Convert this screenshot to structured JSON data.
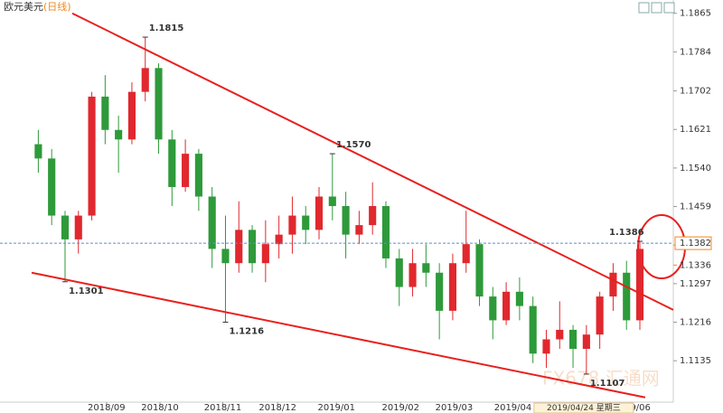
{
  "chart_data": {
    "type": "candlestick",
    "title": "欧元美元",
    "subtitle": "(日线)",
    "up_color": "#e0282e",
    "down_color": "#2e9a3a",
    "xlim": [
      0,
      48
    ],
    "xticks": [
      {
        "value": 5.6,
        "label": "2018/09"
      },
      {
        "value": 9.6,
        "label": "2018/10"
      },
      {
        "value": 14.3,
        "label": "2018/11"
      },
      {
        "value": 18.4,
        "label": "2018/12"
      },
      {
        "value": 22.8,
        "label": "2019/01"
      },
      {
        "value": 27.6,
        "label": "2019/02"
      },
      {
        "value": 31.6,
        "label": "2019/03"
      },
      {
        "value": 36,
        "label": "2019/04"
      },
      {
        "value": 44.9,
        "label": "2019/06"
      }
    ],
    "cursor_label": {
      "value": 41.3,
      "label": "2019/04/24  星期三"
    },
    "ylim": [
      1.1048,
      1.1893
    ],
    "yticks": [
      1.1135,
      1.1216,
      1.1297,
      1.1378,
      {
        "value": 1.1459,
        "label": "1.1459"
      },
      {
        "value": 1.154,
        "label": "1.1540"
      },
      1.1621,
      1.1702,
      1.1784,
      1.1865
    ],
    "ohlc": [
      [
        1.159,
        1.162,
        1.153,
        1.156
      ],
      [
        1.156,
        1.158,
        1.142,
        1.144
      ],
      [
        1.144,
        1.145,
        1.1301,
        1.139
      ],
      [
        1.139,
        1.145,
        1.136,
        1.144
      ],
      [
        1.144,
        1.17,
        1.143,
        1.169
      ],
      [
        1.169,
        1.1735,
        1.159,
        1.162
      ],
      [
        1.162,
        1.165,
        1.153,
        1.16
      ],
      [
        1.16,
        1.172,
        1.159,
        1.17
      ],
      [
        1.17,
        1.1815,
        1.168,
        1.175
      ],
      [
        1.175,
        1.176,
        1.157,
        1.16
      ],
      [
        1.16,
        1.162,
        1.146,
        1.15
      ],
      [
        1.15,
        1.16,
        1.149,
        1.157
      ],
      [
        1.157,
        1.158,
        1.145,
        1.148
      ],
      [
        1.148,
        1.15,
        1.133,
        1.137
      ],
      [
        1.137,
        1.144,
        1.1216,
        1.134
      ],
      [
        1.134,
        1.147,
        1.132,
        1.141
      ],
      [
        1.141,
        1.142,
        1.132,
        1.134
      ],
      [
        1.134,
        1.143,
        1.13,
        1.138
      ],
      [
        1.138,
        1.144,
        1.135,
        1.14
      ],
      [
        1.14,
        1.148,
        1.136,
        1.144
      ],
      [
        1.144,
        1.146,
        1.138,
        1.141
      ],
      [
        1.141,
        1.15,
        1.139,
        1.148
      ],
      [
        1.148,
        1.157,
        1.143,
        1.146
      ],
      [
        1.146,
        1.149,
        1.135,
        1.14
      ],
      [
        1.14,
        1.145,
        1.138,
        1.142
      ],
      [
        1.142,
        1.151,
        1.14,
        1.146
      ],
      [
        1.146,
        1.147,
        1.133,
        1.135
      ],
      [
        1.135,
        1.137,
        1.125,
        1.129
      ],
      [
        1.129,
        1.137,
        1.127,
        1.134
      ],
      [
        1.134,
        1.138,
        1.129,
        1.132
      ],
      [
        1.132,
        1.134,
        1.118,
        1.124
      ],
      [
        1.124,
        1.136,
        1.122,
        1.134
      ],
      [
        1.134,
        1.145,
        1.132,
        1.138
      ],
      [
        1.138,
        1.139,
        1.125,
        1.127
      ],
      [
        1.127,
        1.129,
        1.118,
        1.122
      ],
      [
        1.122,
        1.13,
        1.121,
        1.128
      ],
      [
        1.128,
        1.131,
        1.122,
        1.125
      ],
      [
        1.125,
        1.127,
        1.113,
        1.115
      ],
      [
        1.115,
        1.12,
        1.112,
        1.118
      ],
      [
        1.118,
        1.126,
        1.116,
        1.12
      ],
      [
        1.12,
        1.121,
        1.112,
        1.116
      ],
      [
        1.116,
        1.121,
        1.1107,
        1.119
      ],
      [
        1.119,
        1.128,
        1.116,
        1.127
      ],
      [
        1.127,
        1.134,
        1.124,
        1.132
      ],
      [
        1.132,
        1.1345,
        1.12,
        1.122
      ],
      [
        1.122,
        1.1386,
        1.12,
        1.137
      ]
    ],
    "trend_lines": [
      {
        "color": "#e8201e",
        "x": [
          3.04,
          48
        ],
        "y": [
          1.1865,
          1.1242
        ]
      },
      {
        "color": "#e8201e",
        "x": [
          0,
          45.9
        ],
        "y": [
          1.132,
          1.1058
        ]
      }
    ],
    "annotations": [
      {
        "x": 8.5,
        "value": 1.1815,
        "label": "1.1815",
        "color": "#d63a3a",
        "side": "above"
      },
      {
        "x": 2.5,
        "value": 1.1301,
        "label": "1.1301",
        "color": "#3e9a3e",
        "side": "below"
      },
      {
        "x": 14.5,
        "value": 1.1216,
        "label": "1.1216",
        "color": "#3e9a3e",
        "side": "below"
      },
      {
        "x": 22.5,
        "value": 1.157,
        "label": "1.1570",
        "color": "#d63a3a",
        "side": "above"
      },
      {
        "x": 41.5,
        "value": 1.1107,
        "label": "1.1107",
        "color": "#3e9a3e",
        "side": "below"
      },
      {
        "x": 45.5,
        "value": 1.1386,
        "label": "1.1386",
        "color": "#d63a3a",
        "side": "above-left"
      }
    ],
    "price_line": {
      "value": 1.1382,
      "label": "1.1382",
      "color": "#f08a1c"
    },
    "price_tag2": {
      "value": 1.1336,
      "label": "1.1336",
      "color": "#f08a1c"
    },
    "watermark": "FX678 汇通网"
  }
}
